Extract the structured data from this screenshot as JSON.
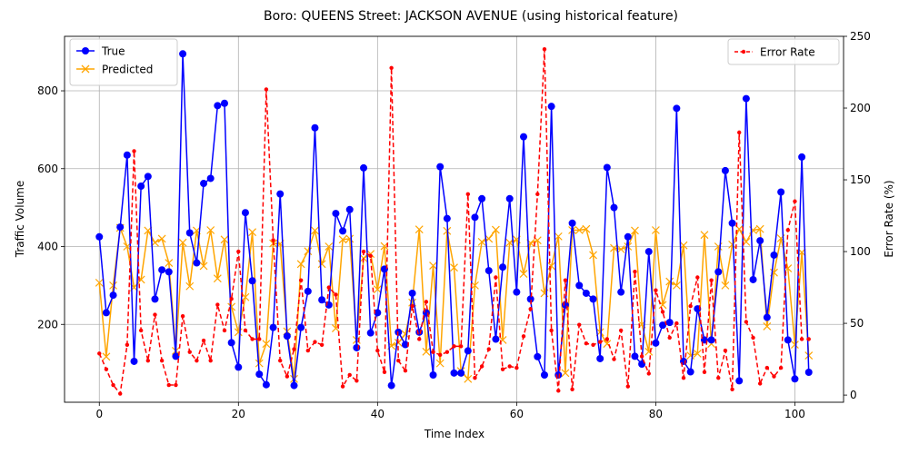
{
  "chart_data": {
    "type": "line",
    "title": "Boro: QUEENS Street: JACKSON AVENUE (using historical feature)",
    "xlabel": "Time Index",
    "ylabel": "Traffic Volume",
    "y2label": "Error Rate (%)",
    "xlim": [
      -5,
      107
    ],
    "ylim": [
      0,
      940
    ],
    "y2lim": [
      -5,
      250
    ],
    "xticks": [
      0,
      20,
      40,
      60,
      80,
      100
    ],
    "yticks": [
      200,
      400,
      600,
      800
    ],
    "y2ticks": [
      0,
      50,
      100,
      150,
      200,
      250
    ],
    "grid": true,
    "legend_left_position": "upper-left",
    "legend_right_position": "upper-right",
    "x": [
      0,
      1,
      2,
      3,
      4,
      5,
      6,
      7,
      8,
      9,
      10,
      11,
      12,
      13,
      14,
      15,
      16,
      17,
      18,
      19,
      20,
      21,
      22,
      23,
      24,
      25,
      26,
      27,
      28,
      29,
      30,
      31,
      32,
      33,
      34,
      35,
      36,
      37,
      38,
      39,
      40,
      41,
      42,
      43,
      44,
      45,
      46,
      47,
      48,
      49,
      50,
      51,
      52,
      53,
      54,
      55,
      56,
      57,
      58,
      59,
      60,
      61,
      62,
      63,
      64,
      65,
      66,
      67,
      68,
      69,
      70,
      71,
      72,
      73,
      74,
      75,
      76,
      77,
      78,
      79,
      80,
      81,
      82,
      83,
      84,
      85,
      86,
      87,
      88,
      89,
      90,
      91,
      92,
      93,
      94,
      95,
      96,
      97,
      98,
      99,
      100,
      101,
      102
    ],
    "series": [
      {
        "name": "True",
        "axis": "left",
        "color": "#0000ff",
        "style": "solid",
        "marker": "circle",
        "values": [
          425,
          230,
          275,
          450,
          635,
          105,
          555,
          580,
          265,
          340,
          335,
          118,
          895,
          435,
          358,
          562,
          575,
          762,
          768,
          153,
          90,
          487,
          312,
          72,
          45,
          192,
          535,
          170,
          43,
          192,
          285,
          705,
          263,
          250,
          485,
          440,
          495,
          140,
          602,
          178,
          230,
          342,
          43,
          180,
          148,
          280,
          180,
          230,
          70,
          605,
          472,
          75,
          75,
          132,
          475,
          523,
          338,
          162,
          347,
          523,
          283,
          682,
          265,
          117,
          70,
          760,
          70,
          250,
          460,
          300,
          280,
          265,
          112,
          603,
          500,
          283,
          425,
          118,
          98,
          387,
          152,
          198,
          205,
          755,
          105,
          78,
          240,
          160,
          160,
          335,
          595,
          460,
          55,
          780,
          315,
          415,
          218,
          378,
          540,
          160,
          60,
          630,
          77
        ]
      },
      {
        "name": "Predicted",
        "axis": "left",
        "color": "#ffa500",
        "style": "solid",
        "marker": "x",
        "values": [
          307,
          117,
          300,
          448,
          400,
          295,
          315,
          441,
          410,
          420,
          358,
          132,
          410,
          298,
          441,
          350,
          442,
          318,
          418,
          245,
          180,
          270,
          437,
          100,
          150,
          408,
          407,
          182,
          60,
          355,
          388,
          441,
          355,
          400,
          190,
          418,
          420,
          160,
          370,
          381,
          290,
          401,
          145,
          153,
          175,
          256,
          444,
          130,
          351,
          100,
          440,
          346,
          80,
          60,
          300,
          412,
          420,
          443,
          160,
          410,
          418,
          330,
          409,
          416,
          280,
          350,
          426,
          75,
          442,
          442,
          445,
          378,
          180,
          150,
          396,
          393,
          400,
          441,
          200,
          130,
          442,
          250,
          310,
          300,
          403,
          120,
          125,
          430,
          150,
          400,
          300,
          405,
          445,
          412,
          442,
          445,
          195,
          333,
          421,
          344,
          148,
          385,
          120
        ]
      },
      {
        "name": "Error Rate",
        "axis": "right",
        "color": "#ff0000",
        "style": "dashed",
        "marker": "dot",
        "values": [
          29,
          18,
          7,
          1,
          35,
          170,
          45,
          24,
          56,
          24,
          7,
          7,
          55,
          30,
          24,
          38,
          24,
          63,
          45,
          67,
          100,
          45,
          39,
          39,
          213,
          108,
          24,
          13,
          32,
          80,
          31,
          37,
          35,
          75,
          70,
          6,
          14,
          10,
          100,
          97,
          31,
          16,
          228,
          24,
          17,
          62,
          39,
          65,
          30,
          28,
          30,
          34,
          34,
          140,
          12,
          20,
          32,
          82,
          18,
          20,
          19,
          41,
          60,
          140,
          241,
          45,
          3,
          80,
          4,
          49,
          36,
          35,
          37,
          39,
          25,
          45,
          6,
          86,
          27,
          15,
          73,
          58,
          40,
          50,
          12,
          62,
          82,
          16,
          80,
          12,
          31,
          4,
          183,
          51,
          40,
          8,
          19,
          13,
          19,
          115,
          135,
          39,
          39
        ]
      }
    ]
  }
}
